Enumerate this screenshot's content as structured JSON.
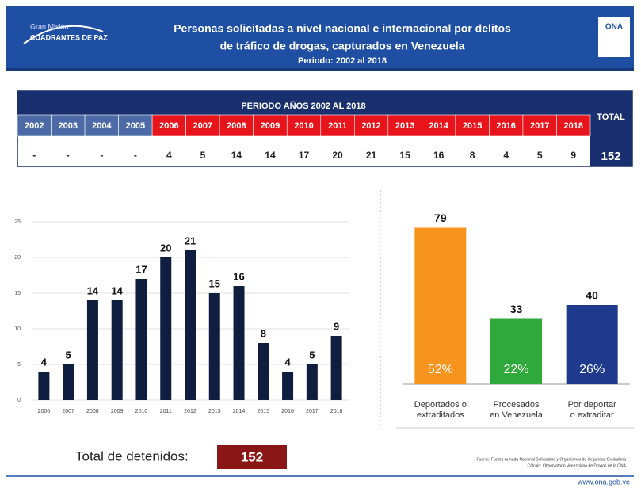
{
  "header": {
    "logo_line1": "Gran Misión",
    "logo_line2": "CUADRANTES DE PAZ",
    "title_lines": [
      "Personas solicitadas a nivel nacional e internacional por delitos",
      "de tráfico de drogas, capturados en Venezuela"
    ],
    "period": "Periodo: 2002 al 2018",
    "right_logo": "ONA"
  },
  "table": {
    "heading": "PERIODO AÑOS 2002 AL 2018",
    "total_label": "TOTAL",
    "years": [
      "2002",
      "2003",
      "2004",
      "2005",
      "2006",
      "2007",
      "2008",
      "2009",
      "2010",
      "2011",
      "2012",
      "2013",
      "2014",
      "2015",
      "2016",
      "2017",
      "2018"
    ],
    "values": [
      "-",
      "-",
      "-",
      "-",
      4,
      5,
      14,
      14,
      17,
      20,
      21,
      15,
      16,
      8,
      4,
      5,
      9
    ],
    "total": 152
  },
  "chart_data": [
    {
      "type": "bar",
      "categories": [
        "2006",
        "2007",
        "2008",
        "2009",
        "2010",
        "2011",
        "2012",
        "2013",
        "2014",
        "2015",
        "2016",
        "2017",
        "2018"
      ],
      "values": [
        4,
        5,
        14,
        14,
        17,
        20,
        21,
        15,
        16,
        8,
        4,
        5,
        9
      ],
      "color": "#0f1d3f",
      "ylim": [
        0,
        25
      ],
      "yticks": [
        0,
        5,
        10,
        15,
        20,
        25
      ],
      "grid": true
    },
    {
      "type": "bar",
      "categories": [
        [
          "Deportados o",
          "extraditados"
        ],
        [
          "Procesados",
          "en Venezuela"
        ],
        [
          "Por deportar",
          "o extraditar"
        ]
      ],
      "values": [
        79,
        33,
        40
      ],
      "colors": [
        "#f7941d",
        "#2fa93c",
        "#1f3a8c"
      ],
      "share_labels": [
        "52%",
        "22%",
        "26%"
      ],
      "ylim": [
        0,
        80
      ]
    }
  ],
  "summary": {
    "label": "Total de detenidos:",
    "value": 152
  },
  "footer": {
    "source_lines": [
      "Fuente: Fuerza Armada Nacional Bolivariana y Organismos de Seguridad Ciudadana",
      "Cálculo: Observatorio Venezolano de Drogas de la ONA"
    ],
    "url": "www.ona.gob.ve"
  }
}
